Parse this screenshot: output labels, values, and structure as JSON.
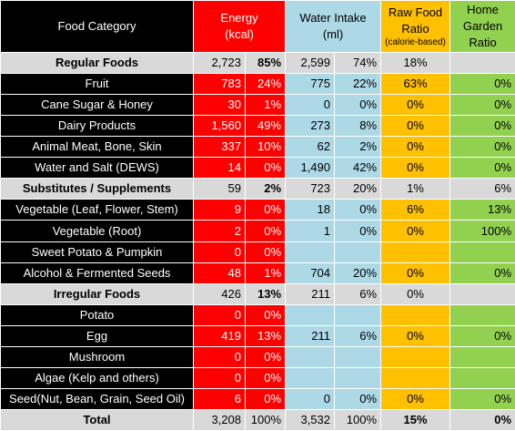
{
  "headers": {
    "food_category": "Food Category",
    "energy_line1": "Energy",
    "energy_line2": "(kcal)",
    "water_line1": "Water Intake",
    "water_line2": "(ml)",
    "raw_line1": "Raw Food",
    "raw_line2": "Ratio",
    "raw_line3": "(calorie-based)",
    "garden_line1": "Home",
    "garden_line2": "Garden",
    "garden_line3": "Ratio"
  },
  "rows": [
    {
      "type": "sub",
      "label": "Regular Foods",
      "kcal": "2,723",
      "kcal_pct": "85%",
      "water": "2,599",
      "water_pct": "74%",
      "raw": "18%",
      "garden": ""
    },
    {
      "type": "item",
      "label": "Fruit",
      "kcal": "783",
      "kcal_pct": "24%",
      "water": "775",
      "water_pct": "22%",
      "raw": "63%",
      "garden": "0%"
    },
    {
      "type": "item",
      "label": "Cane Sugar & Honey",
      "kcal": "30",
      "kcal_pct": "1%",
      "water": "0",
      "water_pct": "0%",
      "raw": "0%",
      "garden": "0%"
    },
    {
      "type": "item",
      "label": "Dairy Products",
      "kcal": "1,560",
      "kcal_pct": "49%",
      "water": "273",
      "water_pct": "8%",
      "raw": "0%",
      "garden": "0%"
    },
    {
      "type": "item",
      "label": "Animal Meat, Bone, Skin",
      "kcal": "337",
      "kcal_pct": "10%",
      "water": "62",
      "water_pct": "2%",
      "raw": "0%",
      "garden": "0%"
    },
    {
      "type": "item",
      "label": "Water and Salt (DEWS)",
      "kcal": "14",
      "kcal_pct": "0%",
      "water": "1,490",
      "water_pct": "42%",
      "raw": "0%",
      "garden": "0%"
    },
    {
      "type": "sub",
      "label": "Substitutes / Supplements",
      "kcal": "59",
      "kcal_pct": "2%",
      "water": "723",
      "water_pct": "20%",
      "raw": "1%",
      "garden": "6%"
    },
    {
      "type": "item",
      "label": "Vegetable (Leaf, Flower, Stem)",
      "kcal": "9",
      "kcal_pct": "0%",
      "water": "18",
      "water_pct": "0%",
      "raw": "6%",
      "garden": "13%"
    },
    {
      "type": "item",
      "label": "Vegetable (Root)",
      "kcal": "2",
      "kcal_pct": "0%",
      "water": "1",
      "water_pct": "0%",
      "raw": "0%",
      "garden": "100%"
    },
    {
      "type": "item",
      "label": "Sweet Potato & Pumpkin",
      "kcal": "0",
      "kcal_pct": "0%",
      "water": "",
      "water_pct": "",
      "raw": "",
      "garden": ""
    },
    {
      "type": "item",
      "label": "Alcohol & Fermented Seeds",
      "kcal": "48",
      "kcal_pct": "1%",
      "water": "704",
      "water_pct": "20%",
      "raw": "0%",
      "garden": "0%"
    },
    {
      "type": "sub",
      "label": "Irregular Foods",
      "kcal": "426",
      "kcal_pct": "13%",
      "water": "211",
      "water_pct": "6%",
      "raw": "0%",
      "garden": ""
    },
    {
      "type": "item",
      "label": "Potato",
      "kcal": "0",
      "kcal_pct": "0%",
      "water": "",
      "water_pct": "",
      "raw": "",
      "garden": ""
    },
    {
      "type": "item",
      "label": "Egg",
      "kcal": "419",
      "kcal_pct": "13%",
      "water": "211",
      "water_pct": "6%",
      "raw": "0%",
      "garden": "0%"
    },
    {
      "type": "item",
      "label": "Mushroom",
      "kcal": "0",
      "kcal_pct": "0%",
      "water": "",
      "water_pct": "",
      "raw": "",
      "garden": ""
    },
    {
      "type": "item",
      "label": "Algae (Kelp and others)",
      "kcal": "0",
      "kcal_pct": "0%",
      "water": "",
      "water_pct": "",
      "raw": "",
      "garden": ""
    },
    {
      "type": "item",
      "label": "Seed(Nut, Bean, Grain, Seed Oil)",
      "kcal": "6",
      "kcal_pct": "0%",
      "water": "0",
      "water_pct": "0%",
      "raw": "0%",
      "garden": "0%"
    },
    {
      "type": "total",
      "label": "Total",
      "kcal": "3,208",
      "kcal_pct": "100%",
      "water": "3,532",
      "water_pct": "100%",
      "raw": "15%",
      "garden": "0%"
    }
  ]
}
